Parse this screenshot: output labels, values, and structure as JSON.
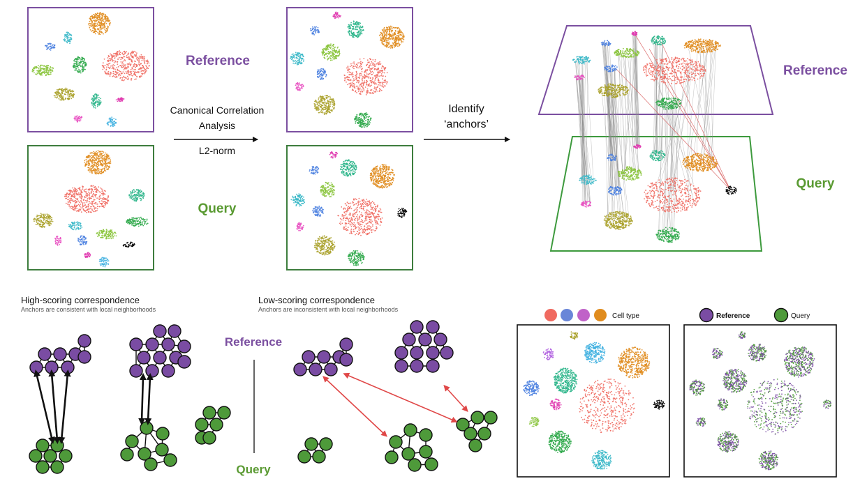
{
  "labels": {
    "reference": "Reference",
    "query": "Query",
    "cca_line1": "Canonical Correlation",
    "cca_line2": "Analysis",
    "l2norm": "L2-norm",
    "identify_line1": "Identify",
    "identify_line2": "‘anchors’",
    "high_title": "High-scoring correspondence",
    "high_sub": "Anchors are consistent with local neighborhoods",
    "low_title": "Low-scoring correspondence",
    "low_sub": "Anchors are inconsistent with local neighborhoods",
    "legend_cell_type": "Cell type",
    "legend_reference": "Reference",
    "legend_query": "Query"
  },
  "colors": {
    "reference": "#7b4fa0",
    "query": "#5a9a32",
    "reference_node": "#7a4ca3",
    "query_node": "#4e9a3a",
    "anchor_bad": "#e04848",
    "salmon": "#f06a60",
    "orange": "#e08c1e",
    "green": "#2fa84a",
    "teal": "#2bb58a",
    "lime": "#8ac43c",
    "olive": "#a8a028",
    "blue": "#4a7fe0",
    "skyblue": "#3fb0e0",
    "cyan": "#3ab8c8",
    "pink": "#e84cc0",
    "violet": "#b060e0",
    "magenta": "#e03cb0",
    "black": "#000000"
  },
  "legend_colors": [
    "#f06a60",
    "#6a86d8",
    "#c062c8",
    "#e08c1e"
  ]
}
